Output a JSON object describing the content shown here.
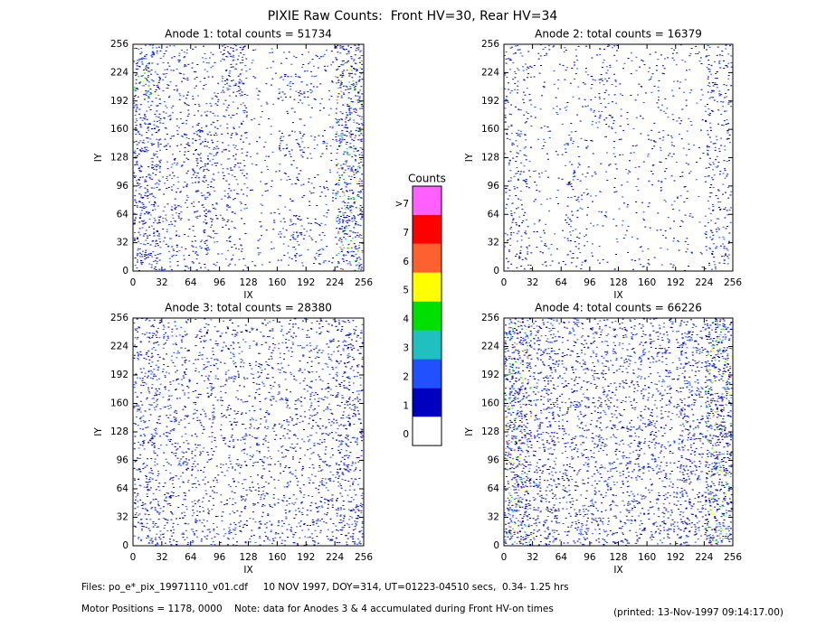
{
  "title": "PIXIE Raw Counts:  Front HV=30, Rear HV=34",
  "chart_data": [
    {
      "type": "heatmap",
      "title": "Anode 1: total counts = 51734",
      "xlabel": "IX",
      "ylabel": "IY",
      "xlim": [
        0,
        256
      ],
      "ylim": [
        0,
        256
      ],
      "xticks": [
        0,
        32,
        64,
        96,
        128,
        160,
        192,
        224,
        256
      ],
      "yticks": [
        0,
        32,
        64,
        96,
        128,
        160,
        192,
        224,
        256
      ],
      "z": [
        [
          0.6,
          0.3,
          0.2,
          0.5,
          0.1,
          0.1,
          0.2,
          0.7
        ],
        [
          0.7,
          0.3,
          0.2,
          0.5,
          0.1,
          0.4,
          0.2,
          0.8
        ],
        [
          0.6,
          0.3,
          0.3,
          0.3,
          0.1,
          0.1,
          0.1,
          0.8
        ],
        [
          0.6,
          0.3,
          0.5,
          0.3,
          0.1,
          0.4,
          0.2,
          0.8
        ],
        [
          0.6,
          0.3,
          0.5,
          0.3,
          0.1,
          0.2,
          0.1,
          0.7
        ],
        [
          0.6,
          0.3,
          0.4,
          0.3,
          0.1,
          0.1,
          0.2,
          0.7
        ],
        [
          0.6,
          0.3,
          0.4,
          0.2,
          0.1,
          0.4,
          0.2,
          0.8
        ],
        [
          0.6,
          0.3,
          0.3,
          0.2,
          0.1,
          0.2,
          0.2,
          0.7
        ]
      ]
    },
    {
      "type": "heatmap",
      "title": "Anode 2: total counts = 16379",
      "xlabel": "IX",
      "ylabel": "IY",
      "xlim": [
        0,
        256
      ],
      "ylim": [
        0,
        256
      ],
      "xticks": [
        0,
        32,
        64,
        96,
        128,
        160,
        192,
        224,
        256
      ],
      "yticks": [
        0,
        32,
        64,
        96,
        128,
        160,
        192,
        224,
        256
      ],
      "z": [
        [
          0.3,
          0.15,
          0.15,
          0.2,
          0.1,
          0.15,
          0.15,
          0.35
        ],
        [
          0.3,
          0.1,
          0.1,
          0.3,
          0.1,
          0.15,
          0.1,
          0.35
        ],
        [
          0.25,
          0.1,
          0.1,
          0.3,
          0.1,
          0.1,
          0.1,
          0.3
        ],
        [
          0.3,
          0.1,
          0.2,
          0.1,
          0.1,
          0.25,
          0.1,
          0.3
        ],
        [
          0.3,
          0.1,
          0.25,
          0.1,
          0.1,
          0.15,
          0.1,
          0.3
        ],
        [
          0.25,
          0.1,
          0.2,
          0.1,
          0.1,
          0.1,
          0.1,
          0.3
        ],
        [
          0.3,
          0.1,
          0.25,
          0.1,
          0.1,
          0.1,
          0.1,
          0.3
        ],
        [
          0.3,
          0.15,
          0.2,
          0.1,
          0.1,
          0.1,
          0.1,
          0.35
        ]
      ]
    },
    {
      "type": "heatmap",
      "title": "Anode 3: total counts = 28380",
      "xlabel": "IX",
      "ylabel": "IY",
      "xlim": [
        0,
        256
      ],
      "ylim": [
        0,
        256
      ],
      "xticks": [
        0,
        32,
        64,
        96,
        128,
        160,
        192,
        224,
        256
      ],
      "yticks": [
        0,
        32,
        64,
        96,
        128,
        160,
        192,
        224,
        256
      ],
      "z": [
        [
          0.45,
          0.35,
          0.3,
          0.3,
          0.3,
          0.3,
          0.35,
          0.5
        ],
        [
          0.45,
          0.35,
          0.3,
          0.3,
          0.3,
          0.3,
          0.35,
          0.5
        ],
        [
          0.45,
          0.35,
          0.3,
          0.3,
          0.3,
          0.3,
          0.35,
          0.5
        ],
        [
          0.45,
          0.35,
          0.3,
          0.3,
          0.3,
          0.3,
          0.35,
          0.5
        ],
        [
          0.45,
          0.35,
          0.3,
          0.3,
          0.3,
          0.3,
          0.35,
          0.5
        ],
        [
          0.45,
          0.35,
          0.3,
          0.3,
          0.3,
          0.3,
          0.35,
          0.5
        ],
        [
          0.45,
          0.35,
          0.3,
          0.3,
          0.3,
          0.3,
          0.35,
          0.5
        ],
        [
          0.5,
          0.4,
          0.35,
          0.35,
          0.35,
          0.35,
          0.4,
          0.55
        ]
      ]
    },
    {
      "type": "heatmap",
      "title": "Anode 4: total counts = 66226",
      "xlabel": "IX",
      "ylabel": "IY",
      "xlim": [
        0,
        256
      ],
      "ylim": [
        0,
        256
      ],
      "xticks": [
        0,
        32,
        64,
        96,
        128,
        160,
        192,
        224,
        256
      ],
      "yticks": [
        0,
        32,
        64,
        96,
        128,
        160,
        192,
        224,
        256
      ],
      "z": [
        [
          0.9,
          0.5,
          0.4,
          0.4,
          0.4,
          0.4,
          0.5,
          0.9
        ],
        [
          0.9,
          0.5,
          0.4,
          0.4,
          0.4,
          0.4,
          0.5,
          0.9
        ],
        [
          0.9,
          0.5,
          0.4,
          0.4,
          0.4,
          0.4,
          0.5,
          0.9
        ],
        [
          0.9,
          0.5,
          0.4,
          0.4,
          0.4,
          0.4,
          0.5,
          0.9
        ],
        [
          0.9,
          0.5,
          0.4,
          0.4,
          0.4,
          0.4,
          0.5,
          0.9
        ],
        [
          0.9,
          0.5,
          0.4,
          0.4,
          0.4,
          0.4,
          0.5,
          0.9
        ],
        [
          0.9,
          0.5,
          0.4,
          0.4,
          0.4,
          0.4,
          0.5,
          0.9
        ],
        [
          0.9,
          0.55,
          0.45,
          0.45,
          0.45,
          0.45,
          0.55,
          0.9
        ]
      ]
    }
  ],
  "colorbar": {
    "title": "Counts",
    "labels": [
      "0",
      "1",
      "2",
      "3",
      "4",
      "5",
      "6",
      "7",
      ">7"
    ],
    "colors": [
      "#ffffff",
      "#0000c0",
      "#2050ff",
      "#20c0c0",
      "#00e000",
      "#ffff00",
      "#ff6030",
      "#ff0000",
      "#ff60ff"
    ]
  },
  "footer": {
    "files": "Files: po_e*_pix_19971110_v01.cdf     10 NOV 1997, DOY=314, UT=01223-04510 secs,  0.34- 1.25 hrs",
    "motor": "Motor Positions = 1178, 0000    Note: data for Anodes 3 & 4 accumulated during Front HV-on times",
    "printed": "(printed: 13-Nov-1997 09:14:17.00)"
  }
}
